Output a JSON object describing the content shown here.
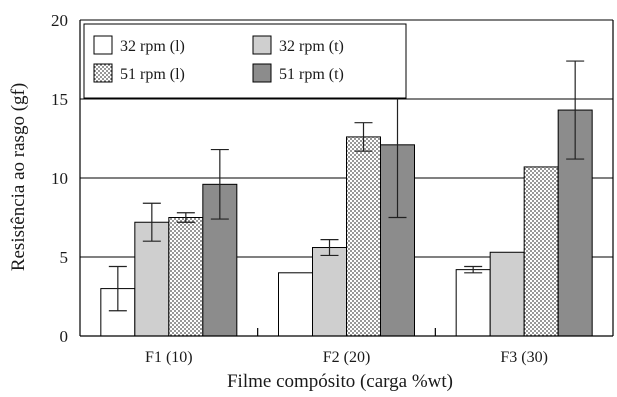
{
  "chart_data": {
    "type": "bar",
    "title": "",
    "xlabel": "Filme compósito (carga %wt)",
    "ylabel": "Resistência ao rasgo (gf)",
    "categories": [
      "F1 (10)",
      "F2 (20)",
      "F3 (30)"
    ],
    "ylim": [
      0,
      20
    ],
    "yticks": [
      "0",
      "5",
      "10",
      "15",
      "20"
    ],
    "grid": true,
    "legend_position": "top-left",
    "series": [
      {
        "name": "32 rpm (l)",
        "values": [
          3.0,
          4.0,
          4.2
        ],
        "error": [
          1.4,
          0,
          0.2
        ],
        "color": "#ffffff",
        "pattern": "none"
      },
      {
        "name": "32 rpm (t)",
        "values": [
          7.2,
          5.6,
          5.3
        ],
        "error": [
          1.2,
          0.5,
          0
        ],
        "color": "#cfcfcf",
        "pattern": "none"
      },
      {
        "name": "51 rpm (l)",
        "values": [
          7.5,
          12.6,
          10.7
        ],
        "error": [
          0.3,
          0.9,
          0
        ],
        "color": "#ffffff",
        "pattern": "dots"
      },
      {
        "name": "51 rpm (t)",
        "values": [
          9.6,
          12.1,
          14.3
        ],
        "error": [
          2.2,
          4.6,
          3.1
        ],
        "color": "#8c8c8c",
        "pattern": "none"
      }
    ]
  }
}
